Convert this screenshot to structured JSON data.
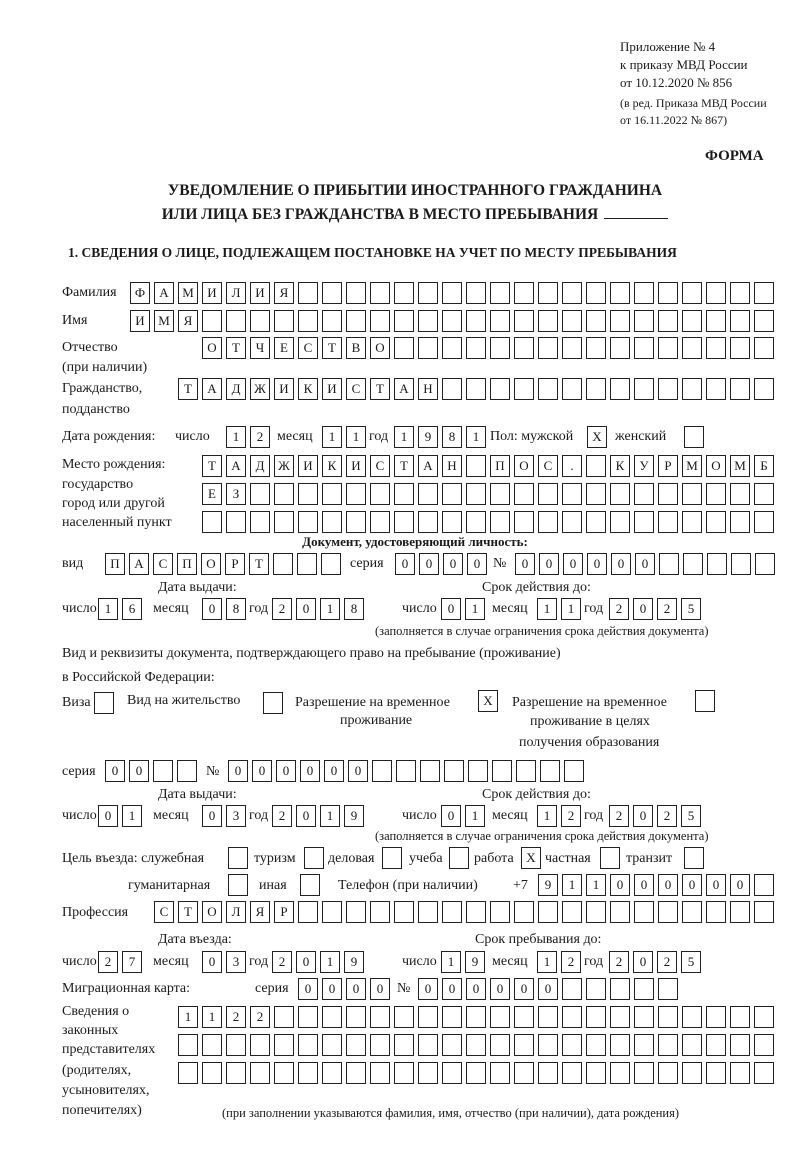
{
  "header": {
    "appendix": "Приложение № 4",
    "order": "к приказу МВД России",
    "order_date": "от 10.12.2020 № 856",
    "edition": "(в ред. Приказа МВД России",
    "edition_date": "от 16.11.2022 № 867)",
    "form_label": "ФОРМА"
  },
  "title": {
    "line1": "УВЕДОМЛЕНИЕ О ПРИБЫТИИ ИНОСТРАННОГО ГРАЖДАНИНА",
    "line2": "ИЛИ ЛИЦА БЕЗ ГРАЖДАНСТВА В МЕСТО ПРЕБЫВАНИЯ"
  },
  "section1": {
    "heading": "1. СВЕДЕНИЯ О ЛИЦЕ, ПОДЛЕЖАЩЕМ ПОСТАНОВКЕ НА УЧЕТ ПО МЕСТУ ПРЕБЫВАНИЯ"
  },
  "labels": {
    "surname": "Фамилия",
    "name": "Имя",
    "patronymic": "Отчество",
    "patronymic_note": "(при наличии)",
    "citizenship": "Гражданство,",
    "citizenship2": "подданство",
    "birth_date": "Дата рождения:",
    "day": "число",
    "month": "месяц",
    "year": "год",
    "sex": "Пол: мужской",
    "female": "женский",
    "birth_place1": "Место рождения:",
    "birth_place2": "государство",
    "birth_place3": "город или другой",
    "birth_place4": "населенный пункт",
    "id_doc": "Документ, удостоверяющий личность:",
    "kind": "вид",
    "series": "серия",
    "number": "№",
    "issue_date": "Дата выдачи:",
    "valid_until": "Срок действия до:",
    "validity_note": "(заполняется в случае ограничения срока действия документа)",
    "right_doc1": "Вид и реквизиты документа, подтверждающего право на пребывание (проживание)",
    "right_doc2": "в Российской Федерации:",
    "visa": "Виза",
    "residence_permit": "Вид на жительство",
    "temp_residence1": "Разрешение на временное",
    "temp_residence2": "проживание",
    "temp_edu1": "Разрешение на временное",
    "temp_edu2": "проживание в целях",
    "temp_edu3": "получения образования",
    "purpose": "Цель въезда: служебная",
    "tourism": "туризм",
    "business": "деловая",
    "study": "учеба",
    "work": "работа",
    "private": "частная",
    "transit": "транзит",
    "humanitarian": "гуманитарная",
    "other": "иная",
    "phone": "Телефон (при наличии)",
    "phone_prefix": "+7",
    "profession": "Профессия",
    "entry_date": "Дата въезда:",
    "stay_until": "Срок пребывания до:",
    "migration_card": "Миграционная карта:",
    "reps1": "Сведения о",
    "reps2": "законных",
    "reps3": "представителях",
    "reps4": "(родителях,",
    "reps5": "усыновителях,",
    "reps6": "попечителях)",
    "reps_note": "(при заполнении указываются фамилия, имя, отчество (при наличии), дата рождения)"
  },
  "values": {
    "surname": "ФАМИЛИЯ",
    "name": "ИМЯ",
    "patronymic": "ОТЧЕСТВО",
    "citizenship": "ТАДЖИКИСТАН",
    "birth_day": "12",
    "birth_month": "11",
    "birth_year": "1981",
    "sex_male": "X",
    "sex_female": "",
    "birth_place_line1": "ТАДЖИКИСТАН ПОС. КУРМОМБ",
    "birth_place_line2": "ЕЗ",
    "birth_place_line3": "",
    "id_kind": "ПАСПОРТ",
    "id_series": "0000",
    "id_number": "000000",
    "id_issue_day": "16",
    "id_issue_month": "08",
    "id_issue_year": "2018",
    "id_valid_day": "01",
    "id_valid_month": "11",
    "id_valid_year": "2025",
    "visa": "",
    "residence_permit": "",
    "temp_residence": "X",
    "temp_edu": "",
    "right_series": "00",
    "right_number": "000000",
    "right_issue_day": "01",
    "right_issue_month": "03",
    "right_issue_year": "2019",
    "right_valid_day": "01",
    "right_valid_month": "12",
    "right_valid_year": "2025",
    "purpose_official": "",
    "purpose_tourism": "",
    "purpose_business": "",
    "purpose_study": "",
    "purpose_work": "X",
    "purpose_private": "",
    "purpose_transit": "",
    "purpose_humanitarian": "",
    "purpose_other": "",
    "phone": "911000000",
    "profession": "СТОЛЯР",
    "entry_day": "27",
    "entry_month": "03",
    "entry_year": "2019",
    "stay_day": "19",
    "stay_month": "12",
    "stay_year": "2025",
    "mig_series": "0000",
    "mig_number": "000000",
    "reps_line1": "1122",
    "reps_line2": "",
    "reps_line3": ""
  }
}
